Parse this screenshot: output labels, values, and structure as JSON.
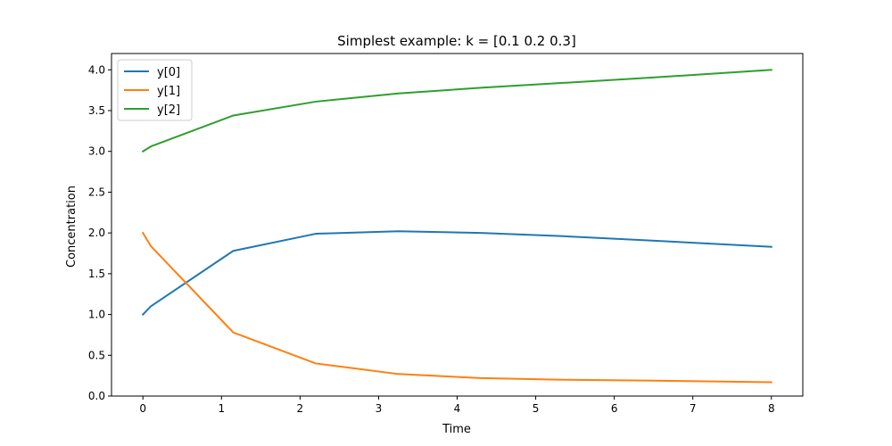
{
  "chart_data": {
    "type": "line",
    "title": "Simplest example: k = [0.1 0.2 0.3]",
    "xlabel": "Time",
    "ylabel": "Concentration",
    "xlim": [
      -0.4,
      8.4
    ],
    "ylim": [
      0.0,
      4.2
    ],
    "xticks": [
      0,
      1,
      2,
      3,
      4,
      5,
      6,
      7,
      8
    ],
    "xtick_labels": [
      "0",
      "1",
      "2",
      "3",
      "4",
      "5",
      "6",
      "7",
      "8"
    ],
    "yticks": [
      0.0,
      0.5,
      1.0,
      1.5,
      2.0,
      2.5,
      3.0,
      3.5,
      4.0
    ],
    "ytick_labels": [
      "0.0",
      "0.5",
      "1.0",
      "1.5",
      "2.0",
      "2.5",
      "3.0",
      "3.5",
      "4.0"
    ],
    "grid": false,
    "legend_position": "top-left",
    "x": [
      0,
      0.1,
      1.15,
      2.2,
      3.25,
      4.3,
      5.35,
      6.4,
      8.0
    ],
    "series": [
      {
        "name": "y[0]",
        "color": "#1f77b4",
        "values": [
          1.0,
          1.1,
          1.78,
          1.99,
          2.02,
          2.0,
          1.96,
          1.91,
          1.83
        ]
      },
      {
        "name": "y[1]",
        "color": "#ff7f0e",
        "values": [
          2.0,
          1.84,
          0.78,
          0.4,
          0.27,
          0.22,
          0.2,
          0.19,
          0.17
        ]
      },
      {
        "name": "y[2]",
        "color": "#2ca02c",
        "values": [
          3.0,
          3.06,
          3.44,
          3.61,
          3.71,
          3.78,
          3.84,
          3.9,
          4.0
        ]
      }
    ]
  }
}
